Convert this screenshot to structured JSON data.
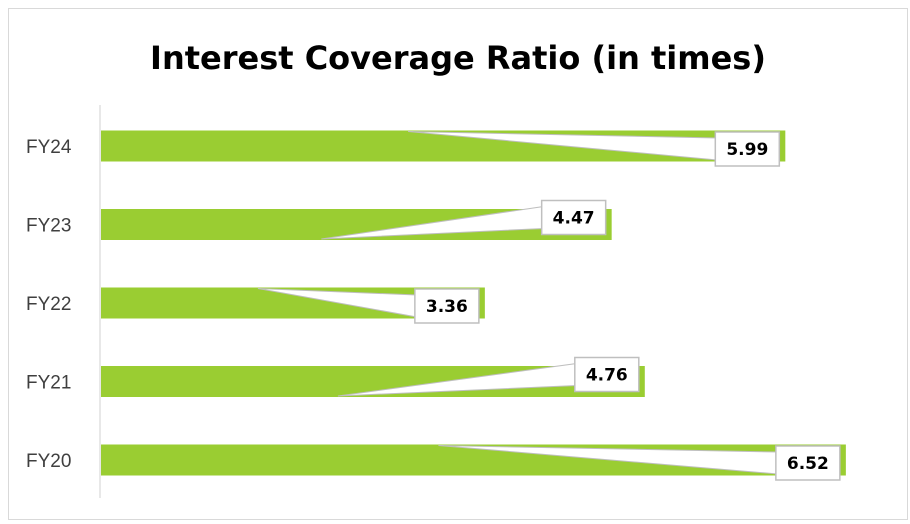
{
  "chart_data": {
    "type": "bar",
    "orientation": "horizontal",
    "title": "Interest Coverage Ratio (in times)",
    "categories": [
      "FY24",
      "FY23",
      "FY22",
      "FY21",
      "FY20"
    ],
    "values": [
      5.99,
      4.47,
      3.36,
      4.76,
      6.52
    ],
    "data_labels": [
      "5.99",
      "4.47",
      "3.36",
      "4.76",
      "6.52"
    ],
    "xlim": [
      0,
      6.6
    ],
    "grid": false,
    "legend": "none",
    "bar_color": "#9ACD32",
    "label_border_color": "#bfbfbf",
    "leader_line_color": "#bfbfbf"
  }
}
